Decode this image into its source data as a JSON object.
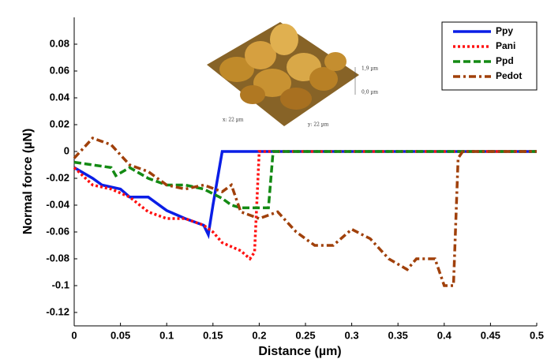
{
  "chart_data": {
    "type": "line",
    "x_label": "Distance (µm)",
    "y_label": "Normal force (µN)",
    "xlim": [
      0,
      0.5
    ],
    "ylim": [
      -0.13,
      0.1
    ],
    "xticks": [
      0,
      0.05,
      0.1,
      0.15,
      0.2,
      0.25,
      0.3,
      0.35,
      0.4,
      0.45,
      0.5
    ],
    "yticks": [
      -0.12,
      -0.1,
      -0.08,
      -0.06,
      -0.04,
      -0.02,
      0,
      0.02,
      0.04,
      0.06,
      0.08
    ],
    "grid": false,
    "legend": "upper right",
    "inset_labels": [
      "1,9 µm",
      "0,0 µm",
      "x: 22 µm",
      "y: 22 µm"
    ],
    "series": [
      {
        "name": "Ppy",
        "color": "#0a1ee6",
        "dash": "solid",
        "x": [
          0,
          0.02,
          0.03,
          0.05,
          0.06,
          0.08,
          0.1,
          0.12,
          0.14,
          0.145,
          0.15,
          0.16,
          0.5
        ],
        "values": [
          -0.012,
          -0.02,
          -0.025,
          -0.028,
          -0.034,
          -0.034,
          -0.044,
          -0.05,
          -0.055,
          -0.062,
          -0.04,
          0,
          0
        ]
      },
      {
        "name": "Pani",
        "color": "#ff1010",
        "dash": "dotted",
        "x": [
          0,
          0.02,
          0.04,
          0.06,
          0.08,
          0.1,
          0.12,
          0.14,
          0.15,
          0.16,
          0.18,
          0.19,
          0.195,
          0.2,
          0.5
        ],
        "values": [
          -0.012,
          -0.025,
          -0.028,
          -0.034,
          -0.045,
          -0.05,
          -0.05,
          -0.055,
          -0.06,
          -0.068,
          -0.074,
          -0.08,
          -0.075,
          0,
          0
        ]
      },
      {
        "name": "Ppd",
        "color": "#138a13",
        "dash": "dashed",
        "x": [
          0,
          0.02,
          0.04,
          0.045,
          0.06,
          0.08,
          0.1,
          0.12,
          0.14,
          0.16,
          0.17,
          0.18,
          0.2,
          0.21,
          0.215,
          0.5
        ],
        "values": [
          -0.008,
          -0.01,
          -0.012,
          -0.018,
          -0.012,
          -0.02,
          -0.025,
          -0.025,
          -0.028,
          -0.035,
          -0.04,
          -0.042,
          -0.042,
          -0.042,
          0,
          0
        ]
      },
      {
        "name": "Pedot",
        "color": "#a0400a",
        "dash": "dashdot",
        "x": [
          0,
          0.02,
          0.04,
          0.06,
          0.08,
          0.1,
          0.12,
          0.14,
          0.16,
          0.17,
          0.18,
          0.2,
          0.22,
          0.24,
          0.26,
          0.28,
          0.3,
          0.32,
          0.34,
          0.36,
          0.37,
          0.39,
          0.4,
          0.41,
          0.415,
          0.42,
          0.5
        ],
        "values": [
          -0.005,
          0.01,
          0.005,
          -0.01,
          -0.015,
          -0.025,
          -0.028,
          -0.025,
          -0.03,
          -0.025,
          -0.045,
          -0.05,
          -0.045,
          -0.06,
          -0.07,
          -0.07,
          -0.058,
          -0.065,
          -0.08,
          -0.088,
          -0.08,
          -0.08,
          -0.1,
          -0.1,
          -0.005,
          0,
          0
        ]
      }
    ]
  }
}
